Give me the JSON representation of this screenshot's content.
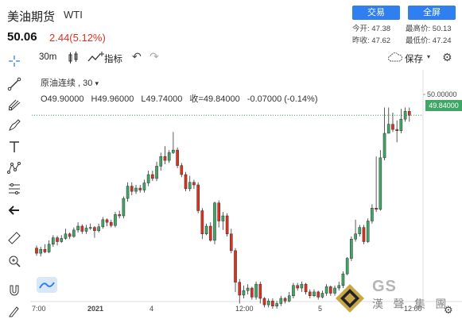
{
  "header": {
    "title": "美油期货",
    "subtitle": "WTI",
    "price": "50.06",
    "change": "2.44(5.12%)",
    "trade_button": "交易",
    "fullscreen_button": "全屏",
    "stats": [
      {
        "label": "今开:",
        "value": "47.38"
      },
      {
        "label": "最高价:",
        "value": "50.13"
      },
      {
        "label": "昨收:",
        "value": "47.62"
      },
      {
        "label": "最低价:",
        "value": "47.24"
      }
    ]
  },
  "toolbar": {
    "interval": "30m",
    "indicators": "指标",
    "save": "保存"
  },
  "sidebar": {
    "tools": [
      "crosshair-icon",
      "trend-line-icon",
      "fork-icon",
      "brush-icon",
      "text-icon",
      "pattern-icon",
      "fib-icon",
      "back-arrow-icon",
      "ruler-icon",
      "zoom-in-icon",
      "magnet-icon",
      "lock-pencil-icon"
    ]
  },
  "legend": {
    "symbol": "原油连续",
    "interval": "30",
    "open": "O49.90000",
    "high": "H49.96000",
    "low": "L49.74000",
    "close": "收=49.84000",
    "delta": "-0.07000 (-0.14%)"
  },
  "yaxis": {
    "top_label": "50.00000",
    "last_price_label": "49.84000"
  },
  "xaxis": {
    "labels": [
      "7:00",
      "2021",
      "4",
      "12:00",
      "5",
      "12:00"
    ]
  },
  "watermark": {
    "text": "漢 聲 集 團",
    "logo_text": "GS"
  },
  "colors": {
    "up": "#3fa665",
    "down": "#e0301e",
    "accent": "#2f7ff0",
    "last_line": "#3fa665"
  },
  "chart_data": {
    "type": "candlestick",
    "symbol": "原油连续",
    "interval": "30",
    "ylim": [
      47.0,
      50.2
    ],
    "candles": [
      [
        47.78,
        47.7,
        47.82,
        47.66
      ],
      [
        47.7,
        47.76,
        47.8,
        47.65
      ],
      [
        47.76,
        47.72,
        47.84,
        47.7
      ],
      [
        47.72,
        47.84,
        47.9,
        47.7
      ],
      [
        47.84,
        47.94,
        47.98,
        47.8
      ],
      [
        47.94,
        47.88,
        47.97,
        47.82
      ],
      [
        47.88,
        47.93,
        47.98,
        47.86
      ],
      [
        47.93,
        48.0,
        48.08,
        47.91
      ],
      [
        48.0,
        47.96,
        48.02,
        47.92
      ],
      [
        47.96,
        48.06,
        48.1,
        47.94
      ],
      [
        48.06,
        48.12,
        48.18,
        48.02
      ],
      [
        48.12,
        48.04,
        48.15,
        48.0
      ],
      [
        48.04,
        48.09,
        48.14,
        48.0
      ],
      [
        48.09,
        48.1,
        48.16,
        48.06
      ],
      [
        48.1,
        48.05,
        48.12,
        47.94
      ],
      [
        48.05,
        48.11,
        48.16,
        48.02
      ],
      [
        48.11,
        48.22,
        48.26,
        48.08
      ],
      [
        48.22,
        48.18,
        48.24,
        48.12
      ],
      [
        48.18,
        48.13,
        48.22,
        48.1
      ],
      [
        48.13,
        48.3,
        48.34,
        48.1
      ],
      [
        48.3,
        48.28,
        48.36,
        48.24
      ],
      [
        48.28,
        48.55,
        48.58,
        48.24
      ],
      [
        48.55,
        48.74,
        48.8,
        48.5
      ],
      [
        48.74,
        48.66,
        48.8,
        48.6
      ],
      [
        48.66,
        48.71,
        48.76,
        48.62
      ],
      [
        48.71,
        48.68,
        48.76,
        48.64
      ],
      [
        48.68,
        48.79,
        48.84,
        48.64
      ],
      [
        48.79,
        48.92,
        48.98,
        48.74
      ],
      [
        48.92,
        48.86,
        48.98,
        48.82
      ],
      [
        48.86,
        49.05,
        49.12,
        48.82
      ],
      [
        49.05,
        49.2,
        49.26,
        48.98
      ],
      [
        49.2,
        49.14,
        49.36,
        49.08
      ],
      [
        49.14,
        49.26,
        49.3,
        49.1
      ],
      [
        49.26,
        49.3,
        49.58,
        49.24
      ],
      [
        49.3,
        49.06,
        49.34,
        49.02
      ],
      [
        49.06,
        48.92,
        49.1,
        48.88
      ],
      [
        48.92,
        48.7,
        48.96,
        48.66
      ],
      [
        48.7,
        48.8,
        48.9,
        48.66
      ],
      [
        48.8,
        48.76,
        48.84,
        48.7
      ],
      [
        48.76,
        48.36,
        48.8,
        48.32
      ],
      [
        48.36,
        48.0,
        48.4,
        47.92
      ],
      [
        48.0,
        48.12,
        48.16,
        47.98
      ],
      [
        48.12,
        47.9,
        48.18,
        47.88
      ],
      [
        47.9,
        48.48,
        48.5,
        47.84
      ],
      [
        48.48,
        48.2,
        48.52,
        48.1
      ],
      [
        48.2,
        48.28,
        48.34,
        48.06
      ],
      [
        48.28,
        48.0,
        48.32,
        47.96
      ],
      [
        48.0,
        47.74,
        48.08,
        47.7
      ],
      [
        47.74,
        47.25,
        47.78,
        47.1
      ],
      [
        47.25,
        47.05,
        47.3,
        46.92
      ],
      [
        47.05,
        47.12,
        47.2,
        47.0
      ],
      [
        47.12,
        47.16,
        47.22,
        47.06
      ],
      [
        47.16,
        47.02,
        47.18,
        46.98
      ],
      [
        47.02,
        47.22,
        47.26,
        46.98
      ],
      [
        47.22,
        47.0,
        47.26,
        46.92
      ],
      [
        47.0,
        46.9,
        47.02,
        46.86
      ],
      [
        46.9,
        46.96,
        47.0,
        46.86
      ],
      [
        46.96,
        46.88,
        47.0,
        46.84
      ],
      [
        46.88,
        46.92,
        46.96,
        46.84
      ],
      [
        46.92,
        47.0,
        47.04,
        46.88
      ],
      [
        47.0,
        46.96,
        47.02,
        46.92
      ],
      [
        46.96,
        47.04,
        47.1,
        46.94
      ],
      [
        47.04,
        47.2,
        47.24,
        47.0
      ],
      [
        47.2,
        47.16,
        47.24,
        47.12
      ],
      [
        47.16,
        47.22,
        47.26,
        47.1
      ],
      [
        47.22,
        47.1,
        47.24,
        47.06
      ],
      [
        47.1,
        47.04,
        47.14,
        47.0
      ],
      [
        47.04,
        47.1,
        47.14,
        47.02
      ],
      [
        47.1,
        47.02,
        47.12,
        46.98
      ],
      [
        47.02,
        47.08,
        47.12,
        47.0
      ],
      [
        47.08,
        47.18,
        47.22,
        47.04
      ],
      [
        47.18,
        47.08,
        47.2,
        47.04
      ],
      [
        47.08,
        47.16,
        47.2,
        47.04
      ],
      [
        47.16,
        47.2,
        47.26,
        47.12
      ],
      [
        47.2,
        47.38,
        47.42,
        47.16
      ],
      [
        47.38,
        47.62,
        47.64,
        47.36
      ],
      [
        47.62,
        47.92,
        47.96,
        47.58
      ],
      [
        47.92,
        48.0,
        48.22,
        47.88
      ],
      [
        48.0,
        48.1,
        48.14,
        47.96
      ],
      [
        48.1,
        47.88,
        48.14,
        47.84
      ],
      [
        47.88,
        48.2,
        48.24,
        47.86
      ],
      [
        48.2,
        48.4,
        48.46,
        48.16
      ],
      [
        48.4,
        48.38,
        49.2,
        48.34
      ],
      [
        48.38,
        49.18,
        49.3,
        48.36
      ],
      [
        49.18,
        49.56,
        49.96,
        49.14
      ],
      [
        49.56,
        49.7,
        49.96,
        49.56
      ],
      [
        49.7,
        49.62,
        49.88,
        49.58
      ],
      [
        49.62,
        49.6,
        49.76,
        49.42
      ],
      [
        49.6,
        49.78,
        49.94,
        49.56
      ],
      [
        49.78,
        49.9,
        49.96,
        49.74
      ],
      [
        49.9,
        49.84,
        49.96,
        49.74
      ]
    ]
  }
}
